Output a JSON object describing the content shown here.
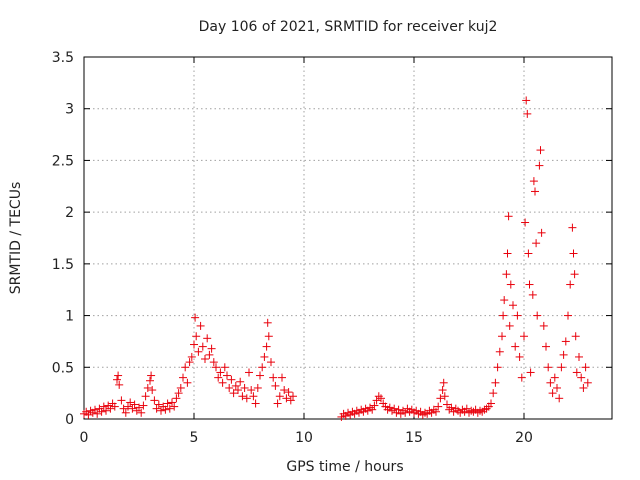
{
  "chart_data": {
    "type": "scatter",
    "title": "Day 106 of 2021, SRMTID for receiver kuj2",
    "xlabel": "GPS time / hours",
    "ylabel": "SRMTID / TECUs",
    "xlim": [
      0,
      24
    ],
    "ylim": [
      0,
      3.5
    ],
    "xticks": [
      0,
      5,
      10,
      15,
      20
    ],
    "xtick_labels": [
      "0",
      "5",
      "10",
      "15",
      "20"
    ],
    "yticks": [
      0,
      0.5,
      1,
      1.5,
      2,
      2.5,
      3,
      3.5
    ],
    "ytick_labels": [
      "0",
      "0.5",
      "1",
      "1.5",
      "2",
      "2.5",
      "3",
      "3.5"
    ],
    "grid": true,
    "marker": "+",
    "color": "#e8000b",
    "series": [
      {
        "name": "kuj2",
        "points": [
          [
            0.0,
            0.05
          ],
          [
            0.1,
            0.07
          ],
          [
            0.2,
            0.04
          ],
          [
            0.3,
            0.08
          ],
          [
            0.4,
            0.06
          ],
          [
            0.5,
            0.09
          ],
          [
            0.6,
            0.05
          ],
          [
            0.7,
            0.1
          ],
          [
            0.8,
            0.07
          ],
          [
            0.9,
            0.12
          ],
          [
            1.0,
            0.08
          ],
          [
            1.1,
            0.13
          ],
          [
            1.2,
            0.1
          ],
          [
            1.3,
            0.15
          ],
          [
            1.4,
            0.12
          ],
          [
            1.5,
            0.38
          ],
          [
            1.55,
            0.42
          ],
          [
            1.6,
            0.33
          ],
          [
            1.7,
            0.18
          ],
          [
            1.8,
            0.1
          ],
          [
            1.9,
            0.06
          ],
          [
            2.0,
            0.12
          ],
          [
            2.1,
            0.16
          ],
          [
            2.2,
            0.1
          ],
          [
            2.3,
            0.14
          ],
          [
            2.4,
            0.08
          ],
          [
            2.5,
            0.11
          ],
          [
            2.6,
            0.06
          ],
          [
            2.7,
            0.13
          ],
          [
            2.8,
            0.22
          ],
          [
            2.9,
            0.3
          ],
          [
            3.0,
            0.37
          ],
          [
            3.05,
            0.42
          ],
          [
            3.1,
            0.28
          ],
          [
            3.2,
            0.18
          ],
          [
            3.3,
            0.1
          ],
          [
            3.4,
            0.14
          ],
          [
            3.5,
            0.08
          ],
          [
            3.6,
            0.12
          ],
          [
            3.7,
            0.09
          ],
          [
            3.8,
            0.15
          ],
          [
            3.9,
            0.1
          ],
          [
            4.0,
            0.16
          ],
          [
            4.1,
            0.12
          ],
          [
            4.2,
            0.2
          ],
          [
            4.3,
            0.25
          ],
          [
            4.4,
            0.3
          ],
          [
            4.5,
            0.4
          ],
          [
            4.6,
            0.5
          ],
          [
            4.7,
            0.35
          ],
          [
            4.8,
            0.55
          ],
          [
            4.9,
            0.6
          ],
          [
            5.0,
            0.72
          ],
          [
            5.05,
            0.98
          ],
          [
            5.1,
            0.8
          ],
          [
            5.2,
            0.65
          ],
          [
            5.3,
            0.9
          ],
          [
            5.4,
            0.7
          ],
          [
            5.5,
            0.58
          ],
          [
            5.6,
            0.78
          ],
          [
            5.7,
            0.62
          ],
          [
            5.8,
            0.68
          ],
          [
            5.9,
            0.55
          ],
          [
            6.0,
            0.5
          ],
          [
            6.1,
            0.4
          ],
          [
            6.2,
            0.45
          ],
          [
            6.3,
            0.35
          ],
          [
            6.4,
            0.5
          ],
          [
            6.5,
            0.42
          ],
          [
            6.6,
            0.3
          ],
          [
            6.7,
            0.38
          ],
          [
            6.8,
            0.25
          ],
          [
            6.9,
            0.32
          ],
          [
            7.0,
            0.28
          ],
          [
            7.1,
            0.36
          ],
          [
            7.2,
            0.22
          ],
          [
            7.3,
            0.3
          ],
          [
            7.4,
            0.2
          ],
          [
            7.5,
            0.45
          ],
          [
            7.6,
            0.28
          ],
          [
            7.7,
            0.22
          ],
          [
            7.8,
            0.15
          ],
          [
            7.9,
            0.3
          ],
          [
            8.0,
            0.42
          ],
          [
            8.1,
            0.5
          ],
          [
            8.2,
            0.6
          ],
          [
            8.3,
            0.7
          ],
          [
            8.35,
            0.93
          ],
          [
            8.4,
            0.8
          ],
          [
            8.5,
            0.55
          ],
          [
            8.6,
            0.4
          ],
          [
            8.7,
            0.32
          ],
          [
            8.8,
            0.15
          ],
          [
            8.9,
            0.22
          ],
          [
            9.0,
            0.4
          ],
          [
            9.1,
            0.28
          ],
          [
            9.2,
            0.2
          ],
          [
            9.3,
            0.26
          ],
          [
            9.4,
            0.18
          ],
          [
            9.5,
            0.22
          ],
          [
            11.7,
            0.02
          ],
          [
            11.8,
            0.05
          ],
          [
            11.9,
            0.03
          ],
          [
            12.0,
            0.06
          ],
          [
            12.1,
            0.04
          ],
          [
            12.2,
            0.07
          ],
          [
            12.3,
            0.05
          ],
          [
            12.4,
            0.08
          ],
          [
            12.5,
            0.06
          ],
          [
            12.6,
            0.09
          ],
          [
            12.7,
            0.07
          ],
          [
            12.8,
            0.1
          ],
          [
            12.9,
            0.08
          ],
          [
            13.0,
            0.11
          ],
          [
            13.1,
            0.09
          ],
          [
            13.2,
            0.13
          ],
          [
            13.3,
            0.18
          ],
          [
            13.4,
            0.22
          ],
          [
            13.5,
            0.2
          ],
          [
            13.6,
            0.15
          ],
          [
            13.7,
            0.12
          ],
          [
            13.8,
            0.09
          ],
          [
            13.9,
            0.11
          ],
          [
            14.0,
            0.08
          ],
          [
            14.1,
            0.1
          ],
          [
            14.2,
            0.06
          ],
          [
            14.3,
            0.09
          ],
          [
            14.4,
            0.05
          ],
          [
            14.5,
            0.08
          ],
          [
            14.6,
            0.06
          ],
          [
            14.7,
            0.1
          ],
          [
            14.8,
            0.07
          ],
          [
            14.9,
            0.09
          ],
          [
            15.0,
            0.06
          ],
          [
            15.1,
            0.08
          ],
          [
            15.2,
            0.05
          ],
          [
            15.3,
            0.07
          ],
          [
            15.4,
            0.04
          ],
          [
            15.5,
            0.06
          ],
          [
            15.6,
            0.05
          ],
          [
            15.7,
            0.08
          ],
          [
            15.8,
            0.06
          ],
          [
            15.9,
            0.09
          ],
          [
            16.0,
            0.07
          ],
          [
            16.1,
            0.12
          ],
          [
            16.2,
            0.2
          ],
          [
            16.3,
            0.28
          ],
          [
            16.35,
            0.35
          ],
          [
            16.4,
            0.22
          ],
          [
            16.5,
            0.14
          ],
          [
            16.6,
            0.09
          ],
          [
            16.7,
            0.11
          ],
          [
            16.8,
            0.07
          ],
          [
            16.9,
            0.1
          ],
          [
            17.0,
            0.08
          ],
          [
            17.1,
            0.06
          ],
          [
            17.2,
            0.09
          ],
          [
            17.3,
            0.07
          ],
          [
            17.4,
            0.1
          ],
          [
            17.5,
            0.06
          ],
          [
            17.6,
            0.08
          ],
          [
            17.7,
            0.07
          ],
          [
            17.8,
            0.09
          ],
          [
            17.9,
            0.06
          ],
          [
            18.0,
            0.08
          ],
          [
            18.1,
            0.07
          ],
          [
            18.2,
            0.09
          ],
          [
            18.3,
            0.1
          ],
          [
            18.4,
            0.12
          ],
          [
            18.5,
            0.15
          ],
          [
            18.6,
            0.25
          ],
          [
            18.7,
            0.35
          ],
          [
            18.8,
            0.5
          ],
          [
            18.9,
            0.65
          ],
          [
            19.0,
            0.8
          ],
          [
            19.05,
            1.0
          ],
          [
            19.1,
            1.15
          ],
          [
            19.2,
            1.4
          ],
          [
            19.25,
            1.6
          ],
          [
            19.3,
            1.96
          ],
          [
            19.35,
            0.9
          ],
          [
            19.4,
            1.3
          ],
          [
            19.5,
            1.1
          ],
          [
            19.6,
            0.7
          ],
          [
            19.7,
            1.0
          ],
          [
            19.8,
            0.6
          ],
          [
            19.9,
            0.4
          ],
          [
            20.0,
            0.8
          ],
          [
            20.05,
            1.9
          ],
          [
            20.1,
            3.08
          ],
          [
            20.15,
            2.95
          ],
          [
            20.2,
            1.6
          ],
          [
            20.25,
            1.3
          ],
          [
            20.3,
            0.45
          ],
          [
            20.4,
            1.2
          ],
          [
            20.45,
            2.3
          ],
          [
            20.5,
            2.2
          ],
          [
            20.55,
            1.7
          ],
          [
            20.6,
            1.0
          ],
          [
            20.7,
            2.45
          ],
          [
            20.75,
            2.6
          ],
          [
            20.8,
            1.8
          ],
          [
            20.9,
            0.9
          ],
          [
            21.0,
            0.7
          ],
          [
            21.1,
            0.5
          ],
          [
            21.2,
            0.35
          ],
          [
            21.3,
            0.25
          ],
          [
            21.4,
            0.4
          ],
          [
            21.5,
            0.3
          ],
          [
            21.6,
            0.2
          ],
          [
            21.7,
            0.5
          ],
          [
            21.8,
            0.62
          ],
          [
            21.9,
            0.75
          ],
          [
            22.0,
            1.0
          ],
          [
            22.1,
            1.3
          ],
          [
            22.2,
            1.85
          ],
          [
            22.25,
            1.6
          ],
          [
            22.3,
            1.4
          ],
          [
            22.35,
            0.8
          ],
          [
            22.4,
            0.45
          ],
          [
            22.5,
            0.6
          ],
          [
            22.6,
            0.4
          ],
          [
            22.7,
            0.3
          ],
          [
            22.8,
            0.5
          ],
          [
            22.9,
            0.35
          ]
        ]
      }
    ]
  }
}
